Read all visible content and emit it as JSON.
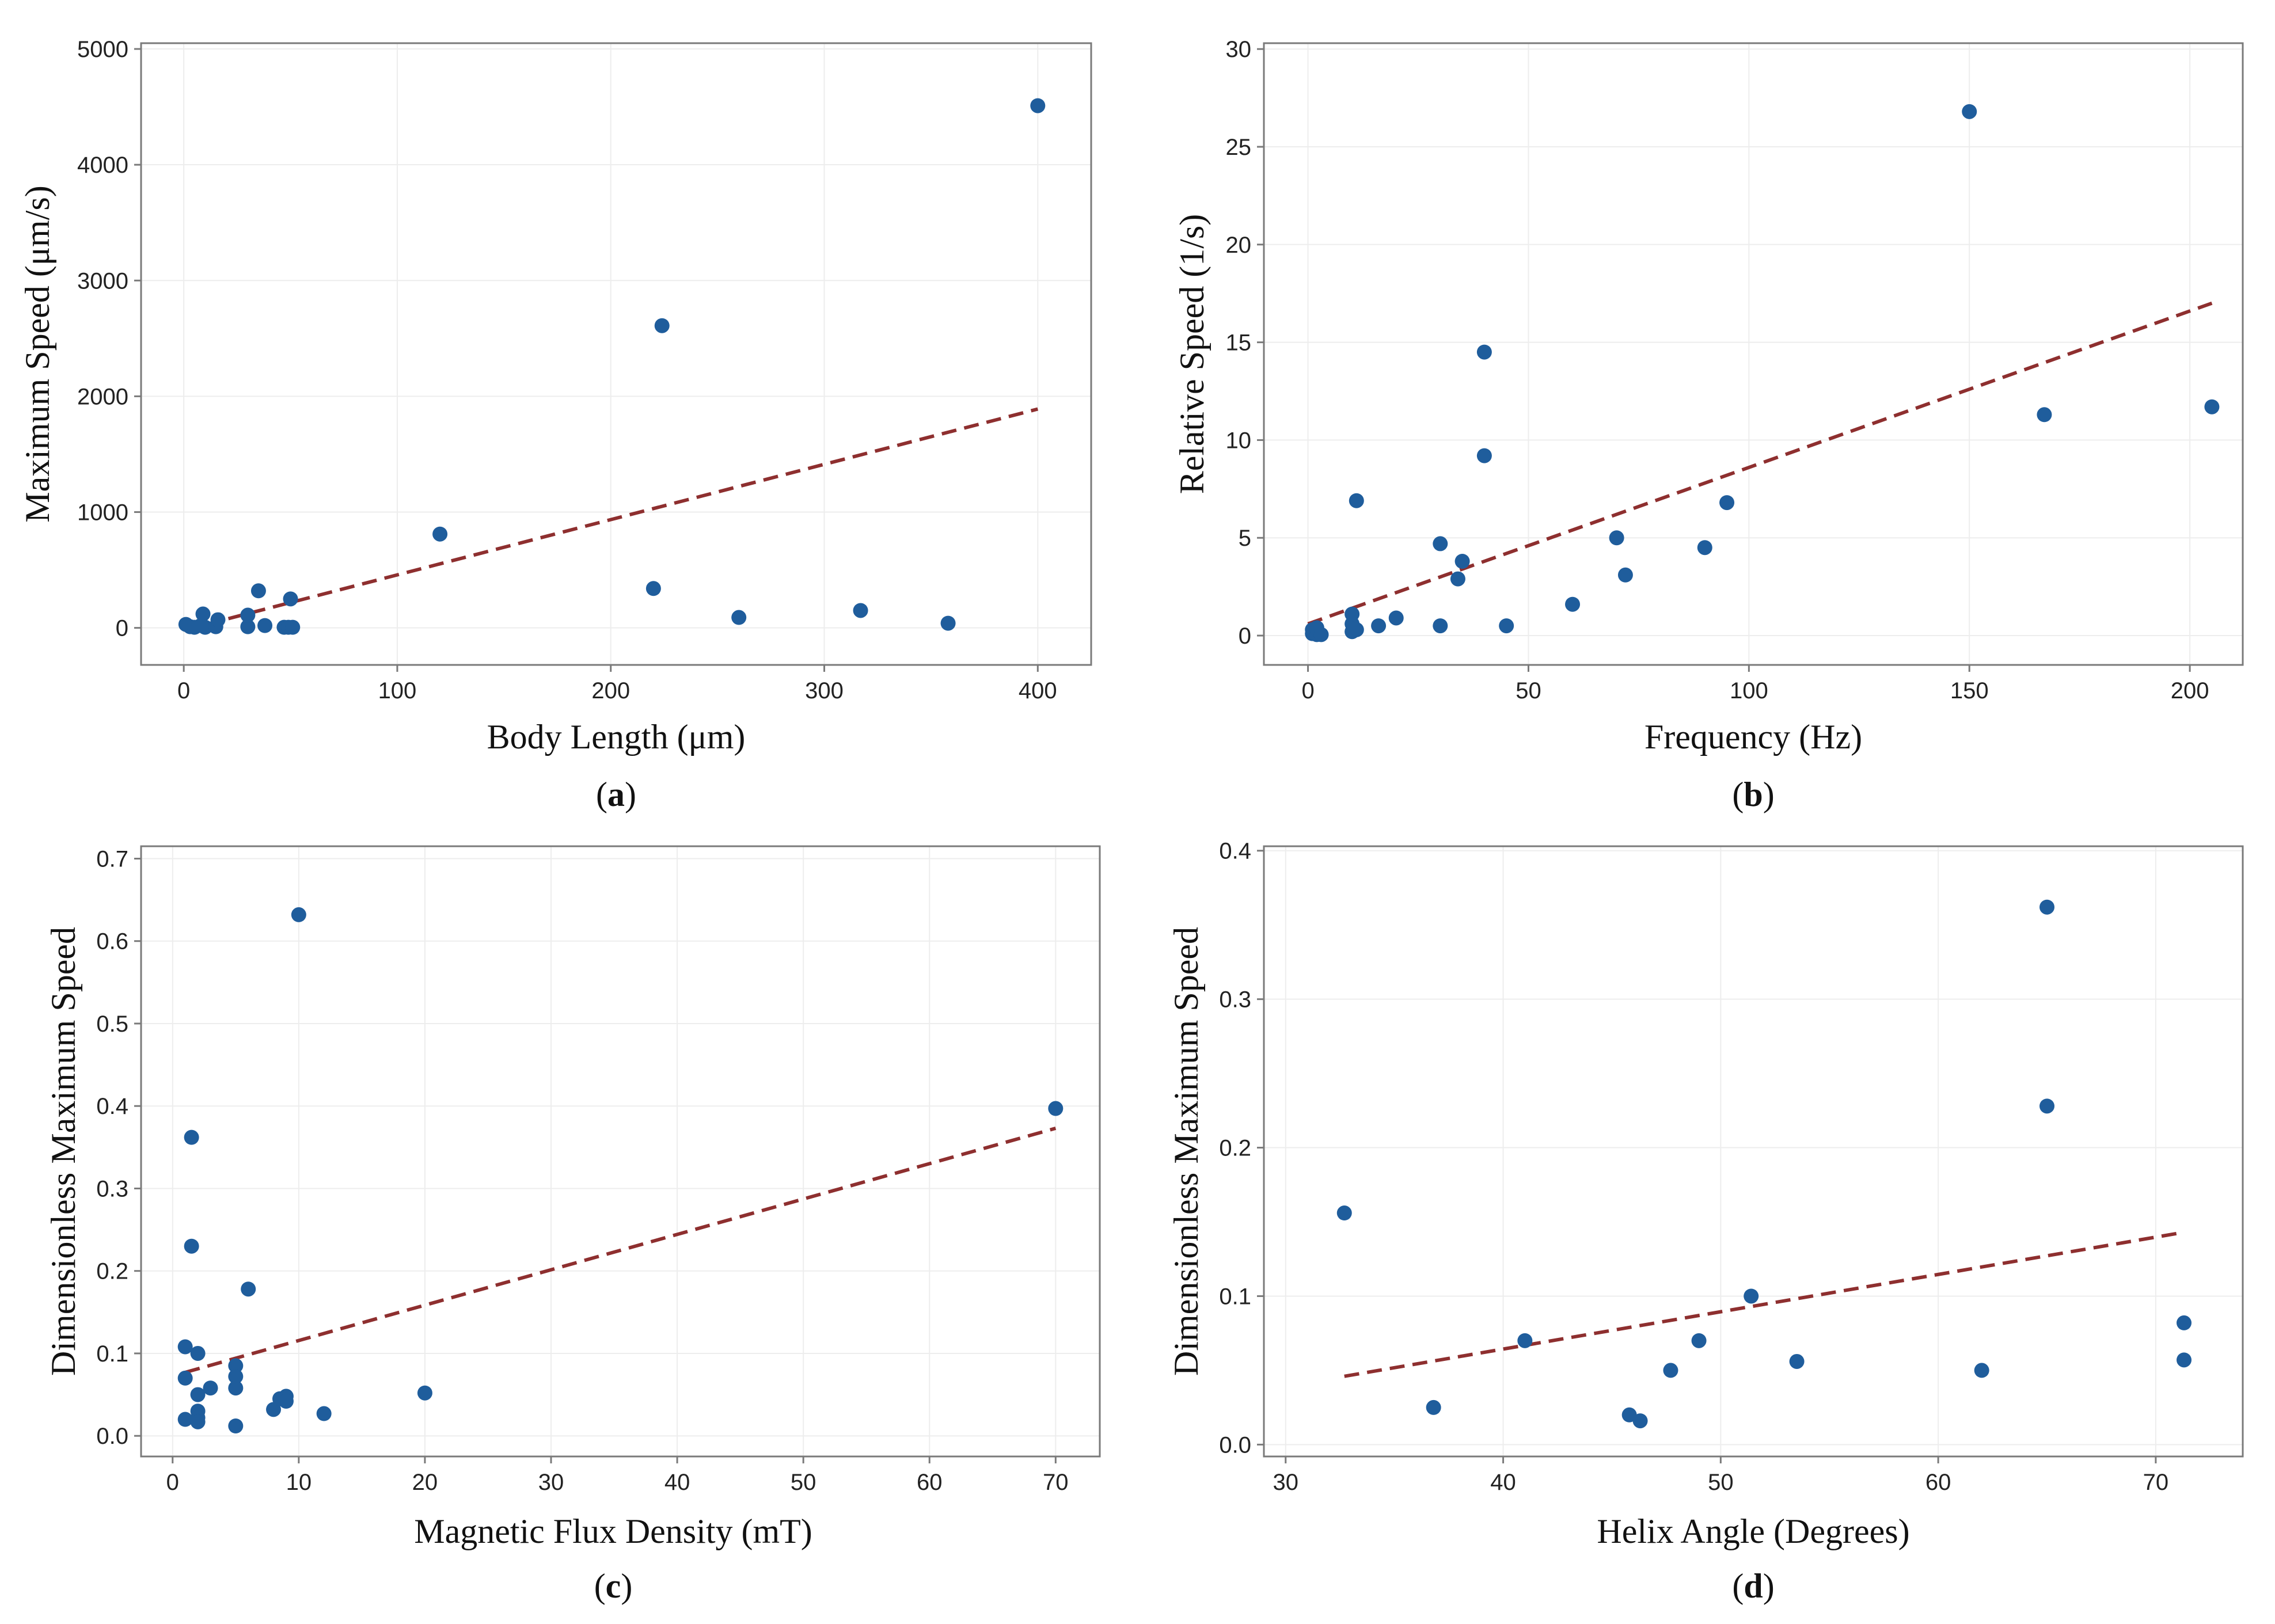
{
  "colors": {
    "point": "#1f5d9c",
    "trend": "#8e2f2f"
  },
  "chart_data": [
    {
      "id": "a",
      "type": "scatter",
      "panel_label": "a",
      "xlabel": "Body Length (μm)",
      "ylabel": "Maximum Speed (μm/s)",
      "xlim": [
        -20,
        425
      ],
      "ylim": [
        -320,
        5050
      ],
      "xticks": [
        0,
        100,
        200,
        300,
        400
      ],
      "xtick_labels": [
        "0",
        "100",
        "200",
        "300",
        "400"
      ],
      "yticks": [
        0,
        1000,
        2000,
        3000,
        4000,
        5000
      ],
      "ytick_labels": [
        "0",
        "1000",
        "2000",
        "3000",
        "4000",
        "5000"
      ],
      "points": [
        {
          "x": 1,
          "y": 30
        },
        {
          "x": 3,
          "y": 10
        },
        {
          "x": 5,
          "y": 5
        },
        {
          "x": 8,
          "y": 20
        },
        {
          "x": 9,
          "y": 120
        },
        {
          "x": 10,
          "y": 5
        },
        {
          "x": 15,
          "y": 10
        },
        {
          "x": 16,
          "y": 70
        },
        {
          "x": 30,
          "y": 10
        },
        {
          "x": 30,
          "y": 110
        },
        {
          "x": 35,
          "y": 320
        },
        {
          "x": 38,
          "y": 20
        },
        {
          "x": 47,
          "y": 5
        },
        {
          "x": 49,
          "y": 5
        },
        {
          "x": 50,
          "y": 250
        },
        {
          "x": 51,
          "y": 5
        },
        {
          "x": 120,
          "y": 810
        },
        {
          "x": 220,
          "y": 340
        },
        {
          "x": 224,
          "y": 2610
        },
        {
          "x": 260,
          "y": 90
        },
        {
          "x": 317,
          "y": 150
        },
        {
          "x": 358,
          "y": 40
        },
        {
          "x": 400,
          "y": 4510
        }
      ],
      "trendline": {
        "x": [
          0,
          400
        ],
        "y": [
          -20,
          1890
        ]
      }
    },
    {
      "id": "b",
      "type": "scatter",
      "panel_label": "b",
      "xlabel": "Frequency (Hz)",
      "ylabel": "Relative Speed (1/s)",
      "xlim": [
        -10,
        212
      ],
      "ylim": [
        -1.5,
        30.3
      ],
      "xticks": [
        0,
        50,
        100,
        150,
        200
      ],
      "xtick_labels": [
        "0",
        "50",
        "100",
        "150",
        "200"
      ],
      "yticks": [
        0,
        5,
        10,
        15,
        20,
        25,
        30
      ],
      "ytick_labels": [
        "0",
        "5",
        "10",
        "15",
        "20",
        "25",
        "30"
      ],
      "points": [
        {
          "x": 1,
          "y": 0.1
        },
        {
          "x": 1,
          "y": 0.3
        },
        {
          "x": 2,
          "y": 0.05
        },
        {
          "x": 2,
          "y": 0.4
        },
        {
          "x": 3,
          "y": 0.05
        },
        {
          "x": 10,
          "y": 0.2
        },
        {
          "x": 10,
          "y": 0.6
        },
        {
          "x": 10,
          "y": 1.1
        },
        {
          "x": 11,
          "y": 0.3
        },
        {
          "x": 11,
          "y": 6.9
        },
        {
          "x": 16,
          "y": 0.5
        },
        {
          "x": 20,
          "y": 0.9
        },
        {
          "x": 30,
          "y": 0.5
        },
        {
          "x": 30,
          "y": 4.7
        },
        {
          "x": 34,
          "y": 2.9
        },
        {
          "x": 35,
          "y": 3.8
        },
        {
          "x": 40,
          "y": 14.5
        },
        {
          "x": 40,
          "y": 9.2
        },
        {
          "x": 45,
          "y": 0.5
        },
        {
          "x": 60,
          "y": 1.6
        },
        {
          "x": 70,
          "y": 5.0
        },
        {
          "x": 72,
          "y": 3.1
        },
        {
          "x": 90,
          "y": 4.5
        },
        {
          "x": 95,
          "y": 6.8
        },
        {
          "x": 150,
          "y": 26.8
        },
        {
          "x": 167,
          "y": 11.3
        },
        {
          "x": 205,
          "y": 11.7
        }
      ],
      "trendline": {
        "x": [
          0,
          205
        ],
        "y": [
          0.6,
          17.0
        ]
      }
    },
    {
      "id": "c",
      "type": "scatter",
      "panel_label": "c",
      "xlabel": "Magnetic Flux Density (mT)",
      "ylabel": "Dimensionless Maximum Speed",
      "xlim": [
        -2.5,
        73.5
      ],
      "ylim": [
        -0.025,
        0.715
      ],
      "xticks": [
        0,
        10,
        20,
        30,
        40,
        50,
        60,
        70
      ],
      "xtick_labels": [
        "0",
        "10",
        "20",
        "30",
        "40",
        "50",
        "60",
        "70"
      ],
      "yticks": [
        0,
        0.1,
        0.2,
        0.3,
        0.4,
        0.5,
        0.6,
        0.7
      ],
      "ytick_labels": [
        "0.0",
        "0.1",
        "0.2",
        "0.3",
        "0.4",
        "0.5",
        "0.6",
        "0.7"
      ],
      "points": [
        {
          "x": 1,
          "y": 0.07
        },
        {
          "x": 1,
          "y": 0.108
        },
        {
          "x": 1,
          "y": 0.02
        },
        {
          "x": 1.5,
          "y": 0.362
        },
        {
          "x": 1.5,
          "y": 0.23
        },
        {
          "x": 2,
          "y": 0.1
        },
        {
          "x": 2,
          "y": 0.05
        },
        {
          "x": 2,
          "y": 0.03
        },
        {
          "x": 2,
          "y": 0.022
        },
        {
          "x": 2,
          "y": 0.017
        },
        {
          "x": 3,
          "y": 0.058
        },
        {
          "x": 5,
          "y": 0.085
        },
        {
          "x": 5,
          "y": 0.072
        },
        {
          "x": 5,
          "y": 0.058
        },
        {
          "x": 5,
          "y": 0.012
        },
        {
          "x": 6,
          "y": 0.178
        },
        {
          "x": 8,
          "y": 0.032
        },
        {
          "x": 8.5,
          "y": 0.045
        },
        {
          "x": 9,
          "y": 0.048
        },
        {
          "x": 9,
          "y": 0.042
        },
        {
          "x": 10,
          "y": 0.632
        },
        {
          "x": 12,
          "y": 0.027
        },
        {
          "x": 20,
          "y": 0.052
        },
        {
          "x": 70,
          "y": 0.397
        }
      ],
      "trendline": {
        "x": [
          1,
          70
        ],
        "y": [
          0.077,
          0.373
        ]
      }
    },
    {
      "id": "d",
      "type": "scatter",
      "panel_label": "d",
      "xlabel": "Helix Angle (Degrees)",
      "ylabel": "Dimensionless Maximum Speed",
      "xlim": [
        29,
        74
      ],
      "ylim": [
        -0.008,
        0.403
      ],
      "xticks": [
        30,
        40,
        50,
        60,
        70
      ],
      "xtick_labels": [
        "30",
        "40",
        "50",
        "60",
        "70"
      ],
      "yticks": [
        0,
        0.1,
        0.2,
        0.3,
        0.4
      ],
      "ytick_labels": [
        "0.0",
        "0.1",
        "0.2",
        "0.3",
        "0.4"
      ],
      "points": [
        {
          "x": 32.7,
          "y": 0.156
        },
        {
          "x": 36.8,
          "y": 0.025
        },
        {
          "x": 41,
          "y": 0.07
        },
        {
          "x": 45.8,
          "y": 0.02
        },
        {
          "x": 46.3,
          "y": 0.016
        },
        {
          "x": 47.7,
          "y": 0.05
        },
        {
          "x": 49,
          "y": 0.07
        },
        {
          "x": 51.4,
          "y": 0.1
        },
        {
          "x": 53.5,
          "y": 0.056
        },
        {
          "x": 62,
          "y": 0.05
        },
        {
          "x": 65,
          "y": 0.362
        },
        {
          "x": 65,
          "y": 0.228
        },
        {
          "x": 71.3,
          "y": 0.082
        },
        {
          "x": 71.3,
          "y": 0.057
        }
      ],
      "trendline": {
        "x": [
          32.7,
          71.3
        ],
        "y": [
          0.046,
          0.143
        ]
      }
    }
  ]
}
